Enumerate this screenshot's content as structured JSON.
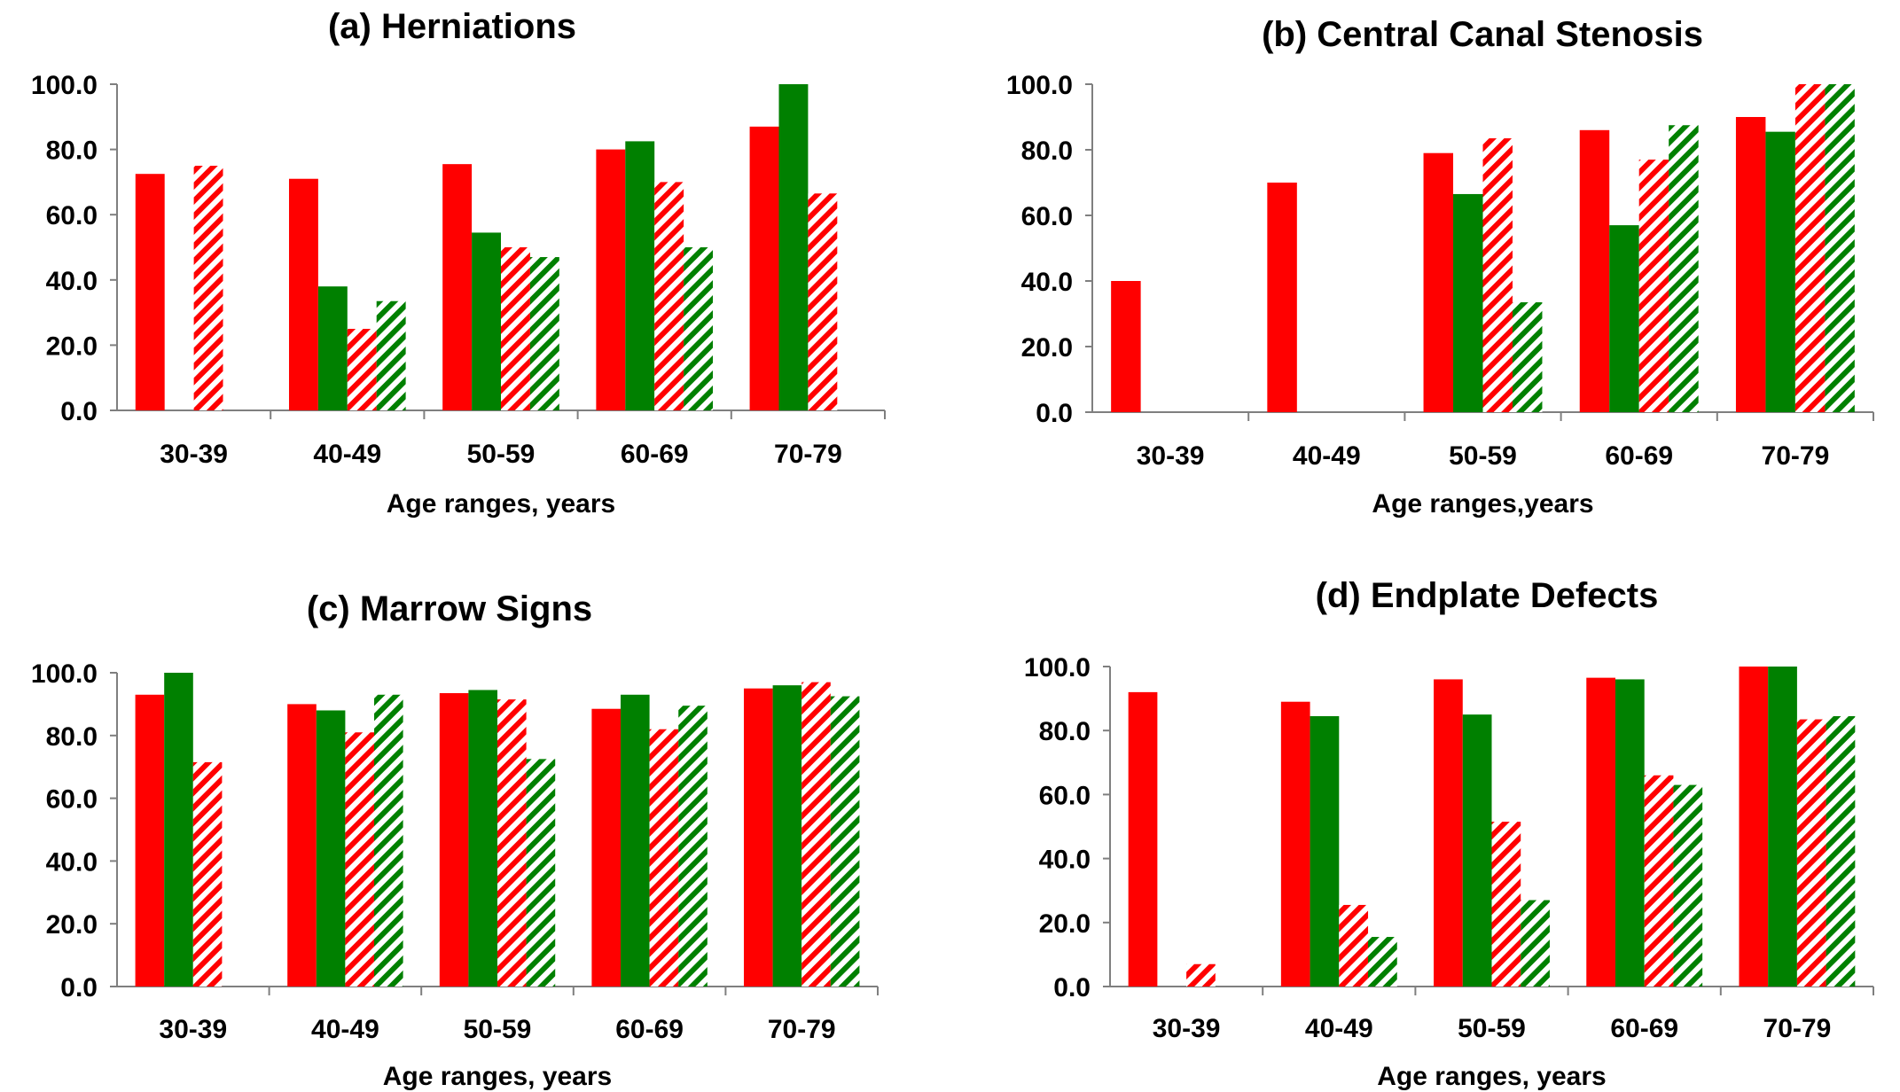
{
  "figure": {
    "colors": {
      "red": "#ff0000",
      "green": "#008000"
    },
    "bar_styles": [
      "solid-red",
      "solid-green",
      "hatched-red",
      "hatched-green"
    ]
  },
  "chart_data": [
    {
      "type": "bar",
      "title": "(a) Herniations",
      "xlabel": "Age ranges, years",
      "ylabel": "",
      "ylim": [
        0,
        100
      ],
      "yticks": [
        "0.0",
        "20.0",
        "40.0",
        "60.0",
        "80.0",
        "100.0"
      ],
      "categories": [
        "30-39",
        "40-49",
        "50-59",
        "60-69",
        "70-79"
      ],
      "series": [
        {
          "style": "solid",
          "color": "#ff0000",
          "values": [
            72.5,
            71.0,
            75.5,
            80.0,
            87.0
          ]
        },
        {
          "style": "solid",
          "color": "#008000",
          "values": [
            0,
            38.0,
            54.5,
            82.5,
            100.0
          ]
        },
        {
          "style": "hatched",
          "color": "#ff0000",
          "values": [
            75.0,
            25.0,
            50.0,
            70.0,
            66.5
          ]
        },
        {
          "style": "hatched",
          "color": "#008000",
          "values": [
            0,
            33.5,
            47.0,
            50.0,
            0
          ]
        }
      ],
      "grid": false
    },
    {
      "type": "bar",
      "title": "(b) Central Canal Stenosis",
      "xlabel": "Age ranges,years",
      "ylabel": "",
      "ylim": [
        0,
        100
      ],
      "yticks": [
        "0.0",
        "20.0",
        "40.0",
        "60.0",
        "80.0",
        "100.0"
      ],
      "categories": [
        "30-39",
        "40-49",
        "50-59",
        "60-69",
        "70-79"
      ],
      "series": [
        {
          "style": "solid",
          "color": "#ff0000",
          "values": [
            40.0,
            70.0,
            79.0,
            86.0,
            90.0
          ]
        },
        {
          "style": "solid",
          "color": "#008000",
          "values": [
            0,
            0,
            66.5,
            57.0,
            85.5
          ]
        },
        {
          "style": "hatched",
          "color": "#ff0000",
          "values": [
            0,
            0,
            83.5,
            77.0,
            100.0
          ]
        },
        {
          "style": "hatched",
          "color": "#008000",
          "values": [
            0,
            0,
            33.5,
            87.5,
            100.0
          ]
        }
      ],
      "grid": false
    },
    {
      "type": "bar",
      "title": "(c) Marrow Signs",
      "xlabel": "Age ranges, years",
      "ylabel": "",
      "ylim": [
        0,
        100
      ],
      "yticks": [
        "0.0",
        "20.0",
        "40.0",
        "60.0",
        "80.0",
        "100.0"
      ],
      "categories": [
        "30-39",
        "40-49",
        "50-59",
        "60-69",
        "70-79"
      ],
      "series": [
        {
          "style": "solid",
          "color": "#ff0000",
          "values": [
            93.0,
            90.0,
            93.5,
            88.5,
            95.0
          ]
        },
        {
          "style": "solid",
          "color": "#008000",
          "values": [
            100.0,
            88.0,
            94.5,
            93.0,
            96.0
          ]
        },
        {
          "style": "hatched",
          "color": "#ff0000",
          "values": [
            71.5,
            81.0,
            91.5,
            82.0,
            97.0
          ]
        },
        {
          "style": "hatched",
          "color": "#008000",
          "values": [
            0,
            93.0,
            72.5,
            89.5,
            92.5
          ]
        }
      ],
      "grid": false
    },
    {
      "type": "bar",
      "title": "(d) Endplate Defects",
      "xlabel": "Age ranges, years",
      "ylabel": "",
      "ylim": [
        0,
        100
      ],
      "yticks": [
        "0.0",
        "20.0",
        "40.0",
        "60.0",
        "80.0",
        "100.0"
      ],
      "categories": [
        "30-39",
        "40-49",
        "50-59",
        "60-69",
        "70-79"
      ],
      "series": [
        {
          "style": "solid",
          "color": "#ff0000",
          "values": [
            92.0,
            89.0,
            96.0,
            96.5,
            100.0
          ]
        },
        {
          "style": "solid",
          "color": "#008000",
          "values": [
            0,
            84.5,
            85.0,
            96.0,
            100.0
          ]
        },
        {
          "style": "hatched",
          "color": "#ff0000",
          "values": [
            7.0,
            25.5,
            51.5,
            66.0,
            83.5
          ]
        },
        {
          "style": "hatched",
          "color": "#008000",
          "values": [
            0,
            15.5,
            27.0,
            63.0,
            84.5
          ]
        }
      ],
      "grid": false
    }
  ]
}
